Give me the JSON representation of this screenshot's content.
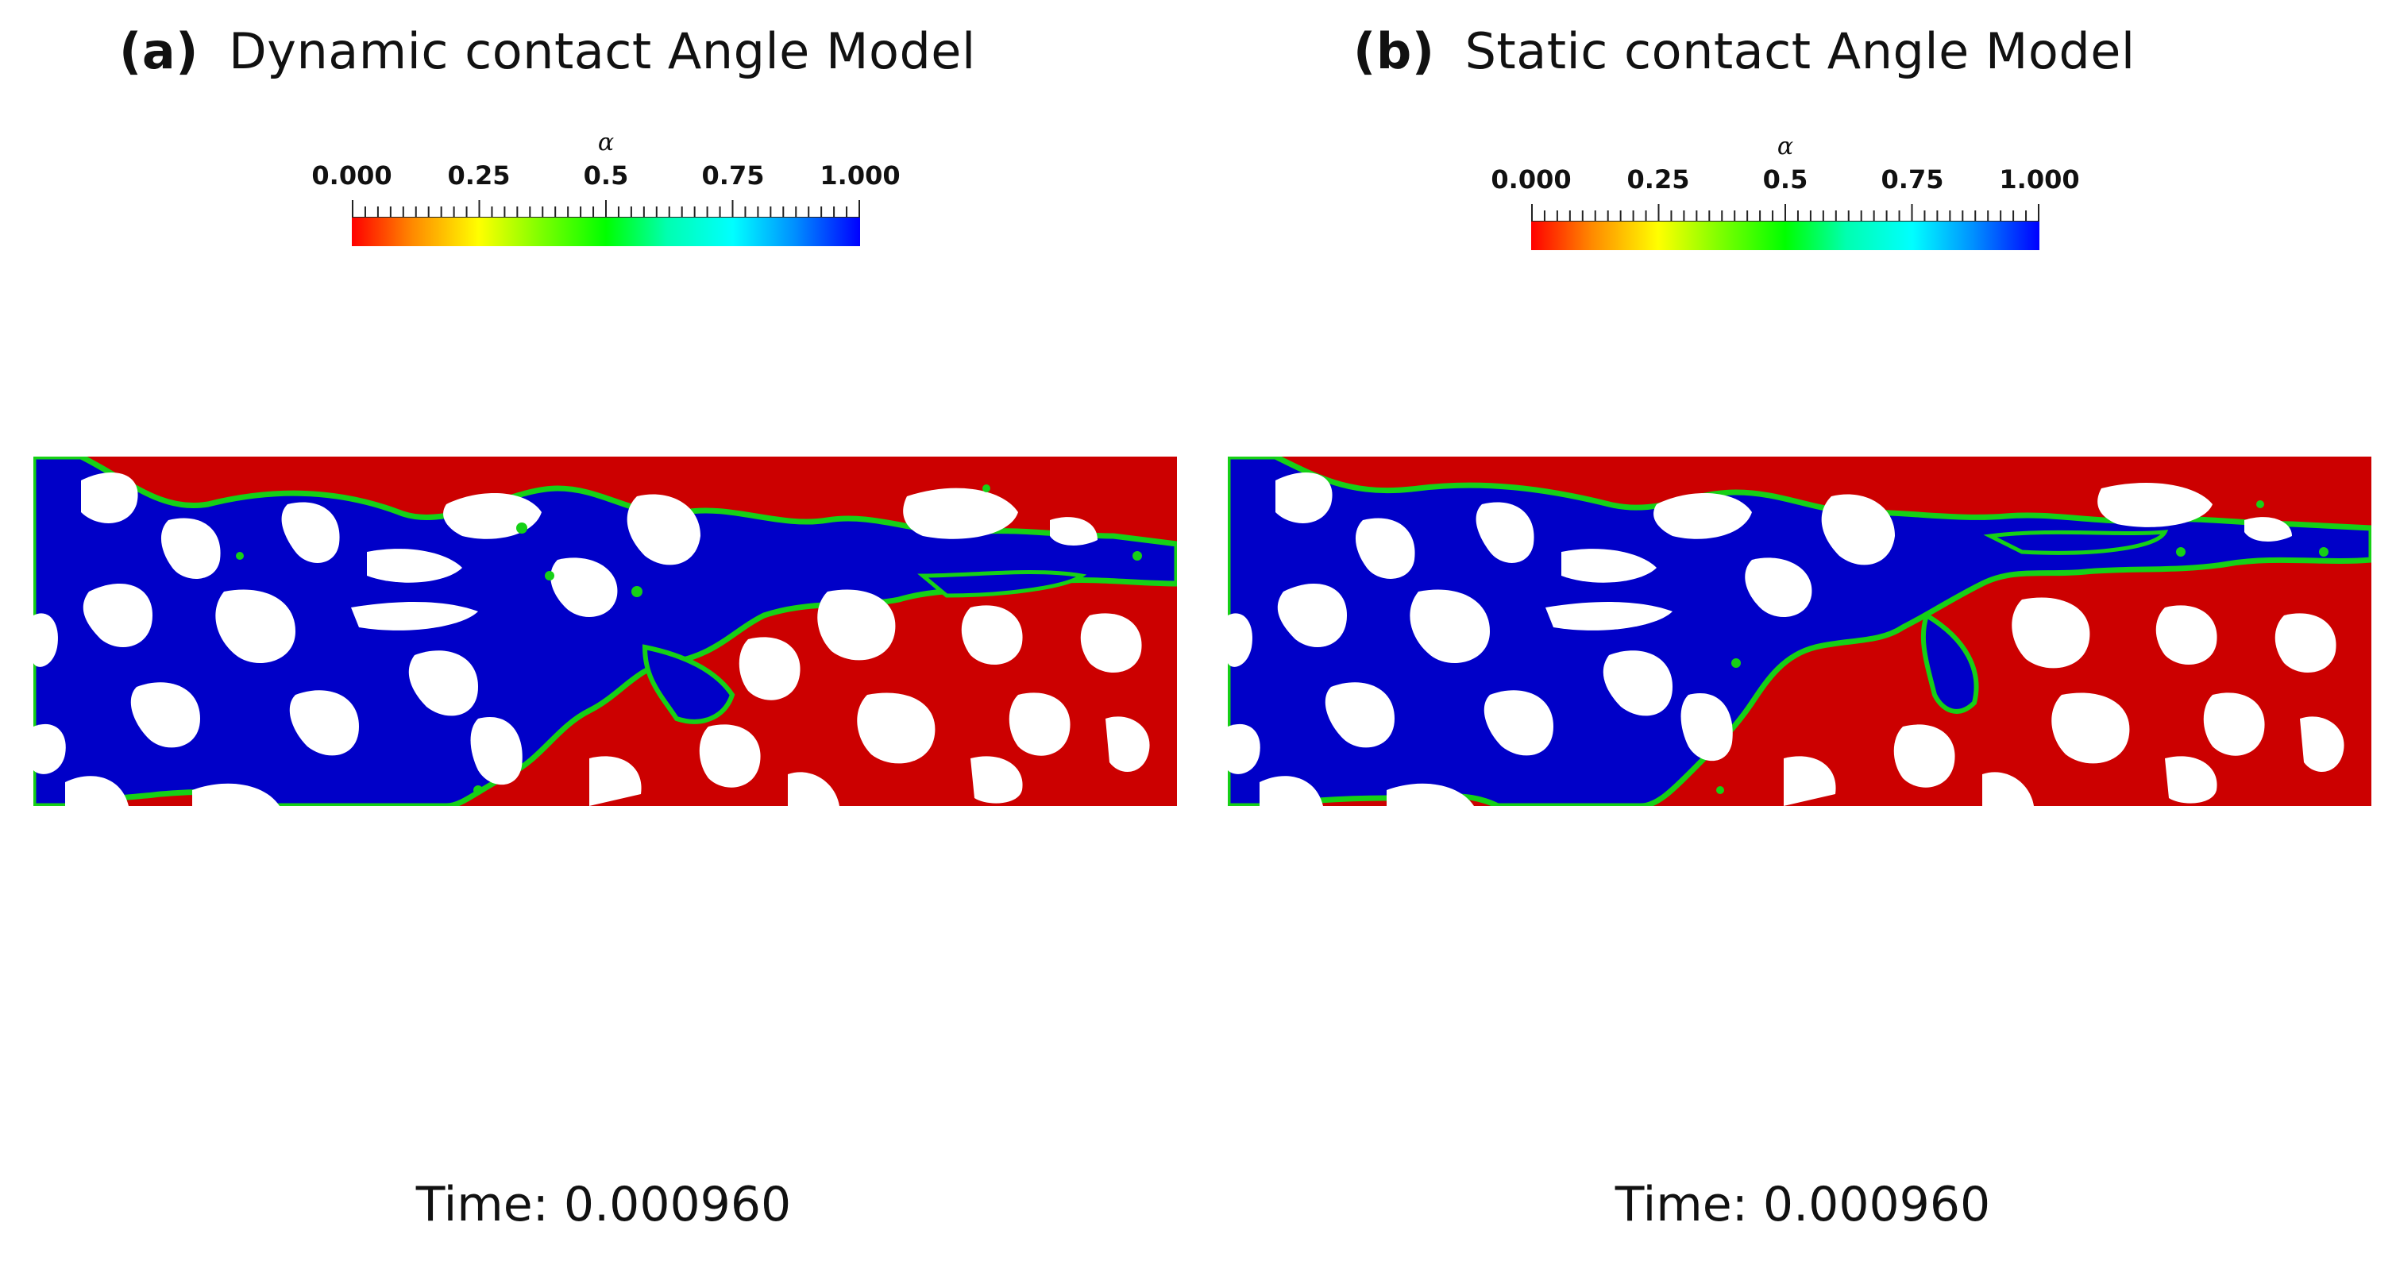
{
  "panels": [
    {
      "letter": "(a)",
      "title": "Dynamic contact Angle Model",
      "colorbar": {
        "symbol": "α",
        "ticks": [
          "0.000",
          "0.25",
          "0.5",
          "0.75",
          "1.000"
        ]
      },
      "time": "Time: 0.000960"
    },
    {
      "letter": "(b)",
      "title": "Static contact Angle Model",
      "colorbar": {
        "symbol": "α",
        "ticks": [
          "0.000",
          "0.25",
          "0.5",
          "0.75",
          "1.000"
        ]
      },
      "time": "Time: 0.000960"
    }
  ],
  "colors": {
    "fluid_high": "#0000c8",
    "fluid_low": "#cc0000",
    "interface": "#16d016",
    "solid": "#ffffff"
  },
  "colormap": [
    "#ff0000",
    "#ff8a00",
    "#ffff00",
    "#7fff00",
    "#00ff00",
    "#00ffb0",
    "#00ffff",
    "#0090ff",
    "#0000ff"
  ]
}
